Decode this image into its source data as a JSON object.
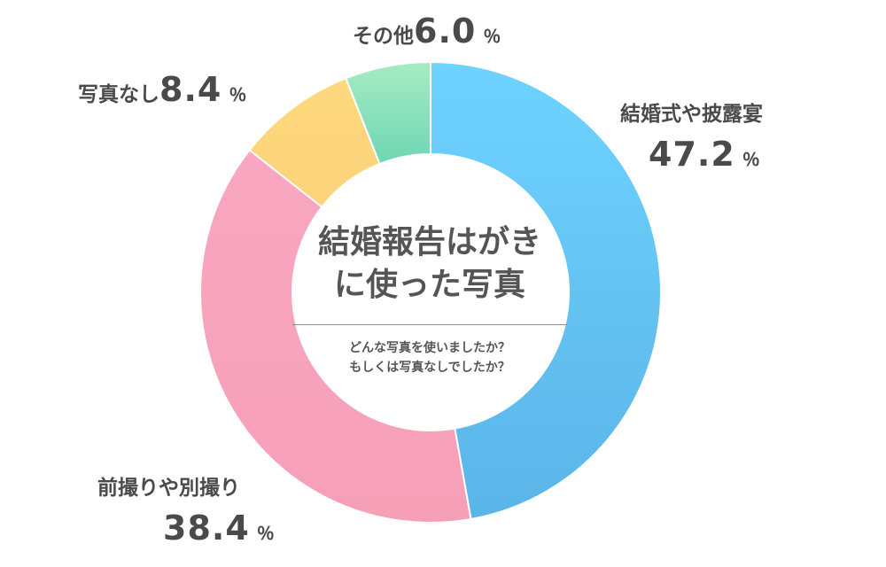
{
  "chart_data": {
    "type": "pie",
    "subtype": "donut",
    "title": "結婚報告はがきに使った写真",
    "title_lines": [
      "結婚報告はがき",
      "に使った写真"
    ],
    "subtitle_lines": [
      "どんな写真を使いましたか？",
      "もしくは写真なしでしたか？"
    ],
    "unit": "％",
    "slices": [
      {
        "name": "結婚式や披露宴",
        "value": 47.2,
        "value_text": "47.2",
        "color_top": "#6ed3ff",
        "color_bottom": "#5bb4e8"
      },
      {
        "name": "前撮りや別撮り",
        "value": 38.4,
        "value_text": "38.4",
        "color_top": "#f9a6c0",
        "color_bottom": "#f6a0b8"
      },
      {
        "name": "写真なし",
        "value": 8.4,
        "value_text": "8.4",
        "color_top": "#ffd97e",
        "color_bottom": "#fbd37a"
      },
      {
        "name": "その他",
        "value": 6.0,
        "value_text": "6.0",
        "color_top": "#a5ecc3",
        "color_bottom": "#6fd6b4"
      }
    ]
  }
}
